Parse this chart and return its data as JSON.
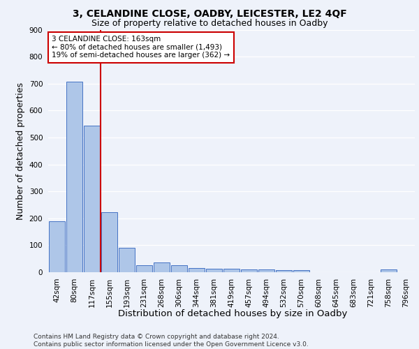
{
  "title": "3, CELANDINE CLOSE, OADBY, LEICESTER, LE2 4QF",
  "subtitle": "Size of property relative to detached houses in Oadby",
  "xlabel": "Distribution of detached houses by size in Oadby",
  "ylabel": "Number of detached properties",
  "categories": [
    "42sqm",
    "80sqm",
    "117sqm",
    "155sqm",
    "193sqm",
    "231sqm",
    "268sqm",
    "306sqm",
    "344sqm",
    "381sqm",
    "419sqm",
    "457sqm",
    "494sqm",
    "532sqm",
    "570sqm",
    "608sqm",
    "645sqm",
    "683sqm",
    "721sqm",
    "758sqm",
    "796sqm"
  ],
  "values": [
    190,
    706,
    543,
    222,
    91,
    27,
    37,
    25,
    15,
    12,
    12,
    10,
    10,
    9,
    7,
    0,
    0,
    0,
    0,
    10,
    0
  ],
  "bar_color": "#aec6e8",
  "bar_edge_color": "#4472c4",
  "vline_color": "#cc0000",
  "vline_pos": 2.5,
  "annotation_text": "3 CELANDINE CLOSE: 163sqm\n← 80% of detached houses are smaller (1,493)\n19% of semi-detached houses are larger (362) →",
  "annotation_box_color": "#ffffff",
  "annotation_box_edge_color": "#cc0000",
  "ylim": [
    0,
    900
  ],
  "yticks": [
    0,
    100,
    200,
    300,
    400,
    500,
    600,
    700,
    800,
    900
  ],
  "background_color": "#eef2fa",
  "plot_bg_color": "#eef2fa",
  "footer_line1": "Contains HM Land Registry data © Crown copyright and database right 2024.",
  "footer_line2": "Contains public sector information licensed under the Open Government Licence v3.0.",
  "title_fontsize": 10,
  "subtitle_fontsize": 9,
  "axis_label_fontsize": 9,
  "tick_fontsize": 7.5,
  "annotation_fontsize": 7.5,
  "footer_fontsize": 6.5
}
